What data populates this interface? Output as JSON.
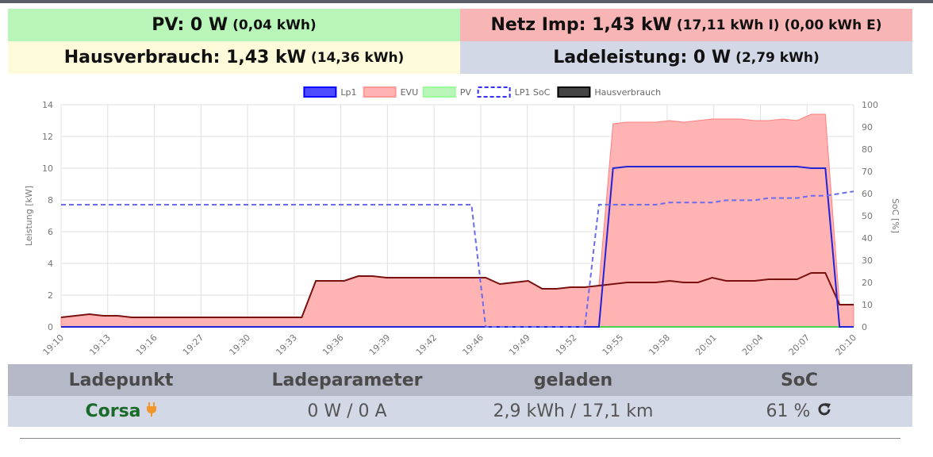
{
  "stats": {
    "pv": {
      "label": "PV: 0 W",
      "sub": "(0,04 kWh)",
      "color": "#b9f5b9"
    },
    "netz": {
      "label": "Netz Imp: 1,43 kW",
      "sub": "(17,11 kWh I) (0,00 kWh E)",
      "color": "#f8b5b5"
    },
    "haus": {
      "label": "Hausverbrauch: 1,43 kW",
      "sub": "(14,36 kWh)",
      "color": "#fdfbd9"
    },
    "lade": {
      "label": "Ladeleistung: 0 W",
      "sub": "(2,79 kWh)",
      "color": "#d2d8e6"
    }
  },
  "chart_data": {
    "type": "line",
    "legend": [
      {
        "name": "Lp1",
        "color": "#0000ff"
      },
      {
        "name": "EVU",
        "color": "#ff9999"
      },
      {
        "name": "PV",
        "color": "#99ff99"
      },
      {
        "name": "LP1 SoC",
        "color": "#0000ff",
        "dashed": true
      },
      {
        "name": "Hausverbrauch",
        "color": "#000000"
      }
    ],
    "legend_position": "top",
    "grid": true,
    "x_ticks": [
      "19:10",
      "19:13",
      "19:16",
      "19:27",
      "19:30",
      "19:33",
      "19:36",
      "19:39",
      "19:42",
      "19:46",
      "19:49",
      "19:52",
      "19:55",
      "19:58",
      "20:01",
      "20:04",
      "20:07",
      "20:10"
    ],
    "ylabel_left": "Leistung [kW]",
    "ylabel_right": "SoC [%]",
    "ylim_left": [
      0,
      14
    ],
    "ylim_right": [
      0,
      100
    ],
    "y_ticks_left": [
      "0",
      "2",
      "4",
      "6",
      "8",
      "10",
      "12",
      "14"
    ],
    "y_ticks_right": [
      "0",
      "10",
      "20",
      "30",
      "40",
      "50",
      "60",
      "70",
      "80",
      "90",
      "100"
    ],
    "series": [
      {
        "name": "EVU",
        "axis": "left",
        "values": [
          0.6,
          0.7,
          0.8,
          0.7,
          0.7,
          0.6,
          0.6,
          0.6,
          0.6,
          0.6,
          0.6,
          0.6,
          0.6,
          0.6,
          0.6,
          0.6,
          0.6,
          0.6,
          2.9,
          2.9,
          2.9,
          3.2,
          3.2,
          3.1,
          3.1,
          3.1,
          3.1,
          3.1,
          3.1,
          3.1,
          3.1,
          2.7,
          2.8,
          2.9,
          2.4,
          2.4,
          2.5,
          2.5,
          2.6,
          12.8,
          12.9,
          12.9,
          12.9,
          13.0,
          12.9,
          13.0,
          13.1,
          13.1,
          13.1,
          13.0,
          13.0,
          13.1,
          13.0,
          13.4,
          13.4,
          1.4,
          1.4
        ]
      },
      {
        "name": "Hausverbrauch",
        "axis": "left",
        "values": [
          0.6,
          0.7,
          0.8,
          0.7,
          0.7,
          0.6,
          0.6,
          0.6,
          0.6,
          0.6,
          0.6,
          0.6,
          0.6,
          0.6,
          0.6,
          0.6,
          0.6,
          0.6,
          2.9,
          2.9,
          2.9,
          3.2,
          3.2,
          3.1,
          3.1,
          3.1,
          3.1,
          3.1,
          3.1,
          3.1,
          3.1,
          2.7,
          2.8,
          2.9,
          2.4,
          2.4,
          2.5,
          2.5,
          2.6,
          2.7,
          2.8,
          2.8,
          2.8,
          2.9,
          2.8,
          2.8,
          3.1,
          2.9,
          2.9,
          2.9,
          3.0,
          3.0,
          3.0,
          3.4,
          3.4,
          1.4,
          1.4
        ]
      },
      {
        "name": "Lp1",
        "axis": "left",
        "values": [
          0,
          0,
          0,
          0,
          0,
          0,
          0,
          0,
          0,
          0,
          0,
          0,
          0,
          0,
          0,
          0,
          0,
          0,
          0,
          0,
          0,
          0,
          0,
          0,
          0,
          0,
          0,
          0,
          0,
          0,
          0,
          0,
          0,
          0,
          0,
          0,
          0,
          0,
          0,
          10.0,
          10.1,
          10.1,
          10.1,
          10.1,
          10.1,
          10.1,
          10.1,
          10.1,
          10.1,
          10.1,
          10.1,
          10.1,
          10.1,
          10.0,
          10.0,
          0,
          0
        ]
      },
      {
        "name": "PV",
        "axis": "left",
        "values": [
          0,
          0,
          0,
          0,
          0,
          0,
          0,
          0,
          0,
          0,
          0,
          0,
          0,
          0,
          0,
          0,
          0,
          0,
          0,
          0,
          0,
          0,
          0,
          0,
          0,
          0,
          0,
          0,
          0,
          0,
          0,
          0,
          0,
          0,
          0,
          0,
          0,
          0,
          0,
          0,
          0,
          0,
          0,
          0,
          0,
          0,
          0,
          0,
          0,
          0,
          0,
          0,
          0,
          0,
          0,
          0,
          0
        ]
      },
      {
        "name": "LP1 SoC",
        "axis": "right",
        "values": [
          55,
          55,
          55,
          55,
          55,
          55,
          55,
          55,
          55,
          55,
          55,
          55,
          55,
          55,
          55,
          55,
          55,
          55,
          55,
          55,
          55,
          55,
          55,
          55,
          55,
          55,
          55,
          55,
          55,
          55,
          0,
          0,
          0,
          0,
          0,
          0,
          0,
          0,
          55,
          55,
          55,
          55,
          55,
          56,
          56,
          56,
          56,
          57,
          57,
          57,
          58,
          58,
          58,
          59,
          59,
          60,
          61
        ]
      }
    ]
  },
  "table": {
    "headers": [
      "Ladepunkt",
      "Ladeparameter",
      "geladen",
      "SoC"
    ],
    "row": {
      "name": "Corsa",
      "params": "0 W / 0 A",
      "charged": "2,9 kWh / 17,1 km",
      "soc": "61 %"
    },
    "plug_icon": "plug-icon",
    "refresh_icon": "refresh-icon",
    "plug_color": "#f0962a",
    "name_color": "#1a6b2a"
  }
}
